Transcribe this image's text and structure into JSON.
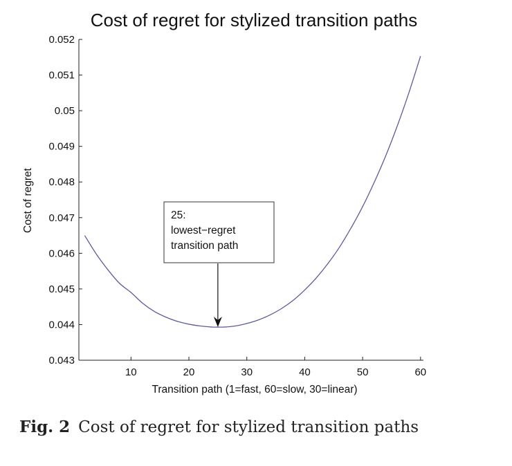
{
  "chart_data": {
    "type": "line",
    "title": "Cost of regret for stylized transition paths",
    "xlabel": "Transition path (1=fast, 60=slow, 30=linear)",
    "ylabel": "Cost of regret",
    "xlim": [
      1,
      60.5
    ],
    "ylim": [
      0.043,
      0.052
    ],
    "xticks": [
      10,
      20,
      30,
      40,
      50,
      60
    ],
    "xtick_labels": [
      "10",
      "20",
      "30",
      "40",
      "50",
      "60"
    ],
    "yticks": [
      0.043,
      0.044,
      0.045,
      0.046,
      0.047,
      0.048,
      0.049,
      0.05,
      0.051,
      0.052
    ],
    "ytick_labels": [
      "0.043",
      "0.044",
      "0.045",
      "0.046",
      "0.047",
      "0.048",
      "0.049",
      "0.05",
      "0.051",
      "0.052"
    ],
    "grid": false,
    "series": [
      {
        "name": "Cost of regret",
        "color": "#5b5b9c",
        "x": [
          2,
          4,
          6,
          8,
          10,
          12,
          14,
          16,
          18,
          20,
          22,
          24,
          25,
          26,
          28,
          30,
          32,
          34,
          36,
          38,
          40,
          42,
          44,
          46,
          48,
          50,
          52,
          54,
          56,
          58,
          60
        ],
        "y": [
          0.0465,
          0.04598,
          0.04554,
          0.04516,
          0.0449,
          0.0446,
          0.04437,
          0.04421,
          0.04409,
          0.04401,
          0.04396,
          0.04393,
          0.04393,
          0.04393,
          0.04396,
          0.04403,
          0.04413,
          0.04427,
          0.04445,
          0.04468,
          0.04497,
          0.04531,
          0.04571,
          0.04617,
          0.04671,
          0.04731,
          0.04799,
          0.04874,
          0.04958,
          0.05051,
          0.05153
        ]
      }
    ],
    "annotation": {
      "lines": [
        "25:",
        "lowest−regret",
        "transition path"
      ],
      "target_x": 25,
      "target_y": 0.04393
    }
  },
  "caption": {
    "label": "Fig. 2",
    "text": "Cost of regret for stylized transition paths"
  }
}
